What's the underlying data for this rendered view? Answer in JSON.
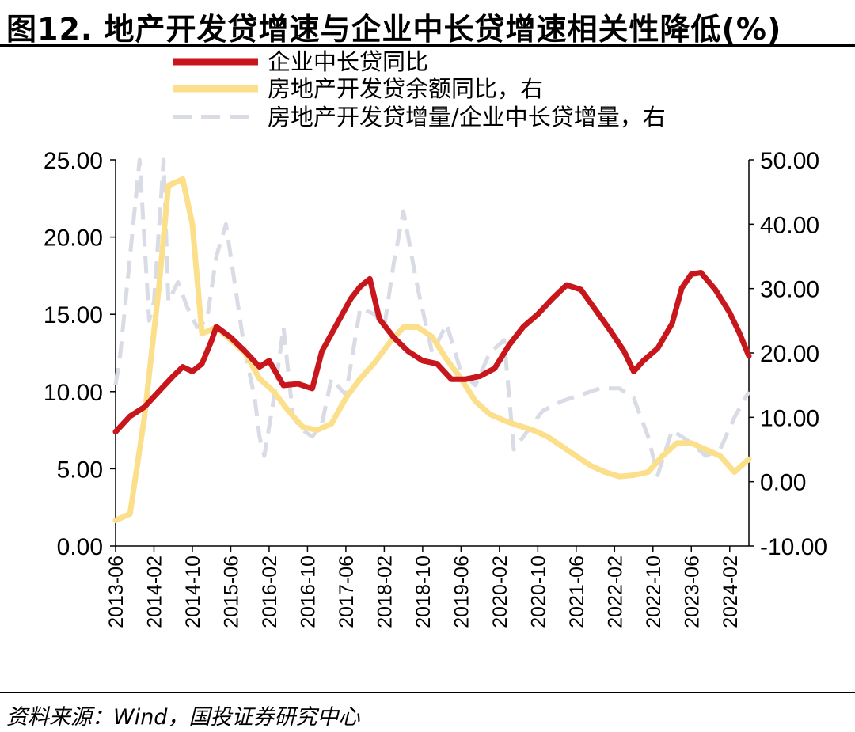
{
  "title": "图12. 地产开发贷增速与企业中长贷增速相关性降低(%)",
  "source": "资料来源：Wind，国投证券研究中心",
  "chart_data": {
    "type": "line",
    "x_start": "2013-06",
    "x_end": "2024-06",
    "x_ticks": [
      "2013-06",
      "2014-02",
      "2014-10",
      "2015-06",
      "2016-02",
      "2016-10",
      "2017-06",
      "2018-02",
      "2018-10",
      "2019-06",
      "2020-02",
      "2020-10",
      "2021-06",
      "2022-02",
      "2022-10",
      "2023-06",
      "2024-02"
    ],
    "left_axis": {
      "min": 0,
      "max": 25,
      "ticks": [
        "0.00",
        "5.00",
        "10.00",
        "15.00",
        "20.00",
        "25.00"
      ]
    },
    "right_axis": {
      "min": -10,
      "max": 50,
      "ticks": [
        "-10.00",
        "0.00",
        "10.00",
        "20.00",
        "30.00",
        "40.00",
        "50.00"
      ]
    },
    "legend_position": "top",
    "series": [
      {
        "name": "企业中长贷同比",
        "axis": "left",
        "color": "#C8161D",
        "style": "solid",
        "points": [
          [
            "2013-06",
            7.4
          ],
          [
            "2013-09",
            8.4
          ],
          [
            "2013-12",
            9.0
          ],
          [
            "2014-03",
            10.0
          ],
          [
            "2014-06",
            11.0
          ],
          [
            "2014-08",
            11.6
          ],
          [
            "2014-10",
            11.3
          ],
          [
            "2014-12",
            11.8
          ],
          [
            "2015-02",
            13.3
          ],
          [
            "2015-03",
            14.2
          ],
          [
            "2015-06",
            13.5
          ],
          [
            "2015-09",
            12.6
          ],
          [
            "2015-12",
            11.6
          ],
          [
            "2016-02",
            12.0
          ],
          [
            "2016-05",
            10.4
          ],
          [
            "2016-08",
            10.5
          ],
          [
            "2016-11",
            10.2
          ],
          [
            "2017-01",
            12.6
          ],
          [
            "2017-04",
            14.3
          ],
          [
            "2017-07",
            16.0
          ],
          [
            "2017-09",
            16.8
          ],
          [
            "2017-11",
            17.3
          ],
          [
            "2018-01",
            14.7
          ],
          [
            "2018-04",
            13.5
          ],
          [
            "2018-07",
            12.6
          ],
          [
            "2018-10",
            12.0
          ],
          [
            "2019-01",
            11.8
          ],
          [
            "2019-04",
            10.8
          ],
          [
            "2019-07",
            10.8
          ],
          [
            "2019-10",
            11.0
          ],
          [
            "2020-01",
            11.5
          ],
          [
            "2020-04",
            13.0
          ],
          [
            "2020-07",
            14.2
          ],
          [
            "2020-10",
            15.0
          ],
          [
            "2021-01",
            16.0
          ],
          [
            "2021-04",
            16.9
          ],
          [
            "2021-07",
            16.6
          ],
          [
            "2021-10",
            15.3
          ],
          [
            "2022-01",
            14.0
          ],
          [
            "2022-04",
            12.6
          ],
          [
            "2022-06",
            11.3
          ],
          [
            "2022-08",
            12.0
          ],
          [
            "2022-11",
            12.8
          ],
          [
            "2023-02",
            14.4
          ],
          [
            "2023-04",
            16.7
          ],
          [
            "2023-06",
            17.6
          ],
          [
            "2023-08",
            17.7
          ],
          [
            "2023-11",
            16.6
          ],
          [
            "2024-02",
            15.1
          ],
          [
            "2024-04",
            13.8
          ],
          [
            "2024-06",
            12.3
          ]
        ]
      },
      {
        "name": "房地产开发贷余额同比，右",
        "axis": "right",
        "color": "#FBDF8B",
        "style": "solid",
        "points": [
          [
            "2013-06",
            -6.0
          ],
          [
            "2013-09",
            -5.0
          ],
          [
            "2013-12",
            10.0
          ],
          [
            "2014-03",
            30.0
          ],
          [
            "2014-05",
            46.0
          ],
          [
            "2014-08",
            47.0
          ],
          [
            "2014-10",
            40.0
          ],
          [
            "2014-12",
            23.0
          ],
          [
            "2015-03",
            24.0
          ],
          [
            "2015-06",
            22.0
          ],
          [
            "2015-09",
            20.0
          ],
          [
            "2015-12",
            16.0
          ],
          [
            "2016-03",
            14.0
          ],
          [
            "2016-06",
            11.0
          ],
          [
            "2016-09",
            8.5
          ],
          [
            "2016-12",
            8.0
          ],
          [
            "2017-03",
            9.0
          ],
          [
            "2017-06",
            13.0
          ],
          [
            "2017-09",
            16.0
          ],
          [
            "2017-12",
            18.5
          ],
          [
            "2018-03",
            21.5
          ],
          [
            "2018-06",
            24.0
          ],
          [
            "2018-09",
            24.0
          ],
          [
            "2018-12",
            22.5
          ],
          [
            "2019-03",
            19.0
          ],
          [
            "2019-06",
            16.0
          ],
          [
            "2019-09",
            12.5
          ],
          [
            "2019-12",
            10.5
          ],
          [
            "2020-03",
            9.5
          ],
          [
            "2020-06",
            8.7
          ],
          [
            "2020-09",
            8.0
          ],
          [
            "2020-12",
            7.0
          ],
          [
            "2021-03",
            5.5
          ],
          [
            "2021-06",
            4.0
          ],
          [
            "2021-09",
            2.5
          ],
          [
            "2021-12",
            1.5
          ],
          [
            "2022-03",
            0.8
          ],
          [
            "2022-06",
            1.0
          ],
          [
            "2022-09",
            1.5
          ],
          [
            "2022-12",
            4.0
          ],
          [
            "2023-03",
            6.0
          ],
          [
            "2023-06",
            6.0
          ],
          [
            "2023-09",
            5.0
          ],
          [
            "2023-12",
            4.0
          ],
          [
            "2024-03",
            1.5
          ],
          [
            "2024-06",
            3.5
          ]
        ]
      },
      {
        "name": "房地产开发贷增量/企业中长贷增量，右",
        "axis": "right",
        "color": "#D9DCE4",
        "style": "dashed",
        "points": [
          [
            "2013-06",
            15.0
          ],
          [
            "2013-07",
            20.0
          ],
          [
            "2013-09",
            35.0
          ],
          [
            "2013-11",
            50.0
          ],
          [
            "2014-01",
            25.0
          ],
          [
            "2014-02",
            28.0
          ],
          [
            "2014-04",
            50.0
          ],
          [
            "2014-05",
            28.0
          ],
          [
            "2014-07",
            31.0
          ],
          [
            "2014-09",
            27.0
          ],
          [
            "2014-11",
            24.0
          ],
          [
            "2015-01",
            25.0
          ],
          [
            "2015-03",
            35.0
          ],
          [
            "2015-05",
            40.0
          ],
          [
            "2015-07",
            30.0
          ],
          [
            "2015-09",
            20.0
          ],
          [
            "2015-11",
            13.0
          ],
          [
            "2015-12",
            7.0
          ],
          [
            "2016-01",
            4.0
          ],
          [
            "2016-03",
            13.0
          ],
          [
            "2016-05",
            24.0
          ],
          [
            "2016-07",
            10.0
          ],
          [
            "2016-09",
            8.0
          ],
          [
            "2016-11",
            7.0
          ],
          [
            "2017-01",
            9.0
          ],
          [
            "2017-03",
            16.0
          ],
          [
            "2017-06",
            13.5
          ],
          [
            "2017-09",
            27.0
          ],
          [
            "2017-12",
            26.0
          ],
          [
            "2018-02",
            24.0
          ],
          [
            "2018-04",
            34.0
          ],
          [
            "2018-06",
            42.0
          ],
          [
            "2018-09",
            30.0
          ],
          [
            "2018-12",
            20.0
          ],
          [
            "2019-03",
            24.5
          ],
          [
            "2019-06",
            17.0
          ],
          [
            "2019-09",
            15.0
          ],
          [
            "2019-12",
            20.0
          ],
          [
            "2020-03",
            22.0
          ],
          [
            "2020-05",
            5.0
          ],
          [
            "2020-08",
            8.0
          ],
          [
            "2020-11",
            11.0
          ],
          [
            "2021-03",
            12.5
          ],
          [
            "2021-07",
            13.5
          ],
          [
            "2021-11",
            14.5
          ],
          [
            "2022-03",
            14.5
          ],
          [
            "2022-06",
            13.0
          ],
          [
            "2022-09",
            7.0
          ],
          [
            "2022-11",
            1.0
          ],
          [
            "2023-02",
            8.0
          ],
          [
            "2023-06",
            6.0
          ],
          [
            "2023-09",
            4.0
          ],
          [
            "2023-12",
            5.0
          ],
          [
            "2024-03",
            10.0
          ],
          [
            "2024-06",
            14.0
          ]
        ]
      }
    ]
  }
}
